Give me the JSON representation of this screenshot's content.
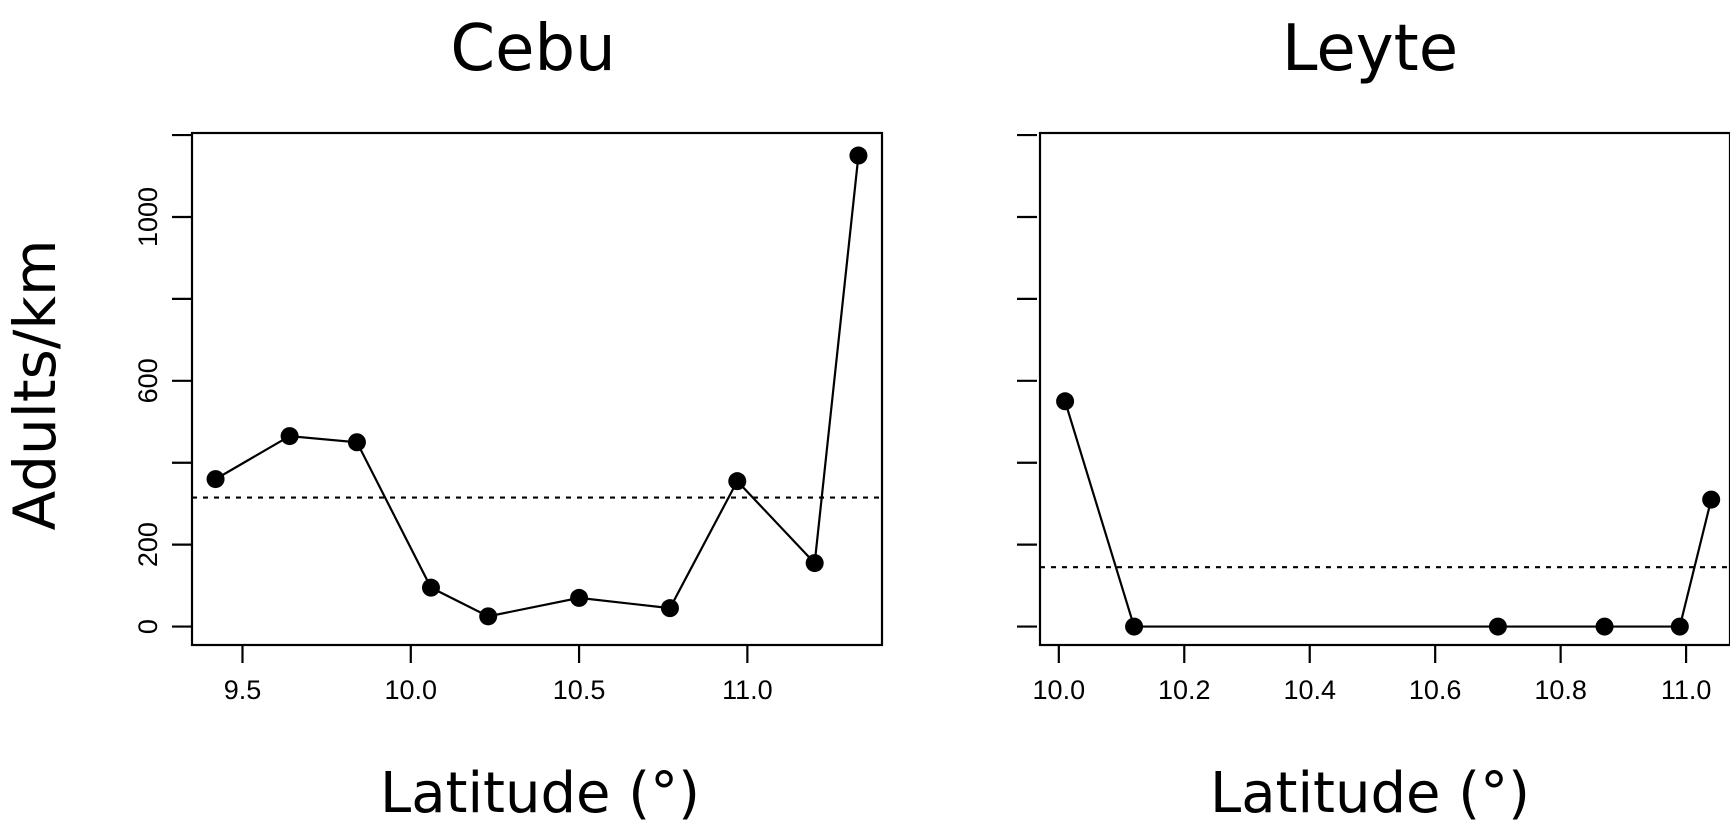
{
  "ylabel": "Adults/km",
  "chart_data": [
    {
      "type": "line",
      "title": "Cebu",
      "xlabel": "Latitude (°)",
      "ylabel": "Adults/km",
      "xlim": [
        9.35,
        11.4
      ],
      "ylim": [
        -45,
        1205
      ],
      "xticks": [
        9.5,
        10.0,
        10.5,
        11.0
      ],
      "xtick_labels": [
        "9.5",
        "10.0",
        "10.5",
        "11.0"
      ],
      "yticks": [
        0,
        200,
        400,
        600,
        800,
        1000,
        1200
      ],
      "ytick_labels": [
        "0",
        "200",
        "",
        "600",
        "",
        "1000",
        ""
      ],
      "x": [
        9.42,
        9.64,
        9.84,
        10.06,
        10.23,
        10.5,
        10.77,
        10.97,
        11.2,
        11.33
      ],
      "y": [
        360,
        465,
        450,
        95,
        25,
        70,
        45,
        355,
        155,
        1150
      ],
      "mean_line": 315,
      "grid": false,
      "legend": "none"
    },
    {
      "type": "line",
      "title": "Leyte",
      "xlabel": "Latitude (°)",
      "ylabel": "",
      "xlim": [
        9.97,
        11.07
      ],
      "ylim": [
        -45,
        1205
      ],
      "xticks": [
        10.0,
        10.2,
        10.4,
        10.6,
        10.8,
        11.0
      ],
      "xtick_labels": [
        "10.0",
        "10.2",
        "10.4",
        "10.6",
        "10.8",
        "11.0"
      ],
      "yticks": [
        0,
        200,
        400,
        600,
        800,
        1000,
        1200
      ],
      "ytick_labels": [
        "",
        "",
        "",
        "",
        "",
        "",
        ""
      ],
      "x": [
        10.01,
        10.12,
        10.7,
        10.87,
        10.99,
        11.04
      ],
      "y": [
        550,
        0,
        0,
        0,
        0,
        310
      ],
      "mean_line": 145,
      "grid": false,
      "legend": "none"
    }
  ]
}
